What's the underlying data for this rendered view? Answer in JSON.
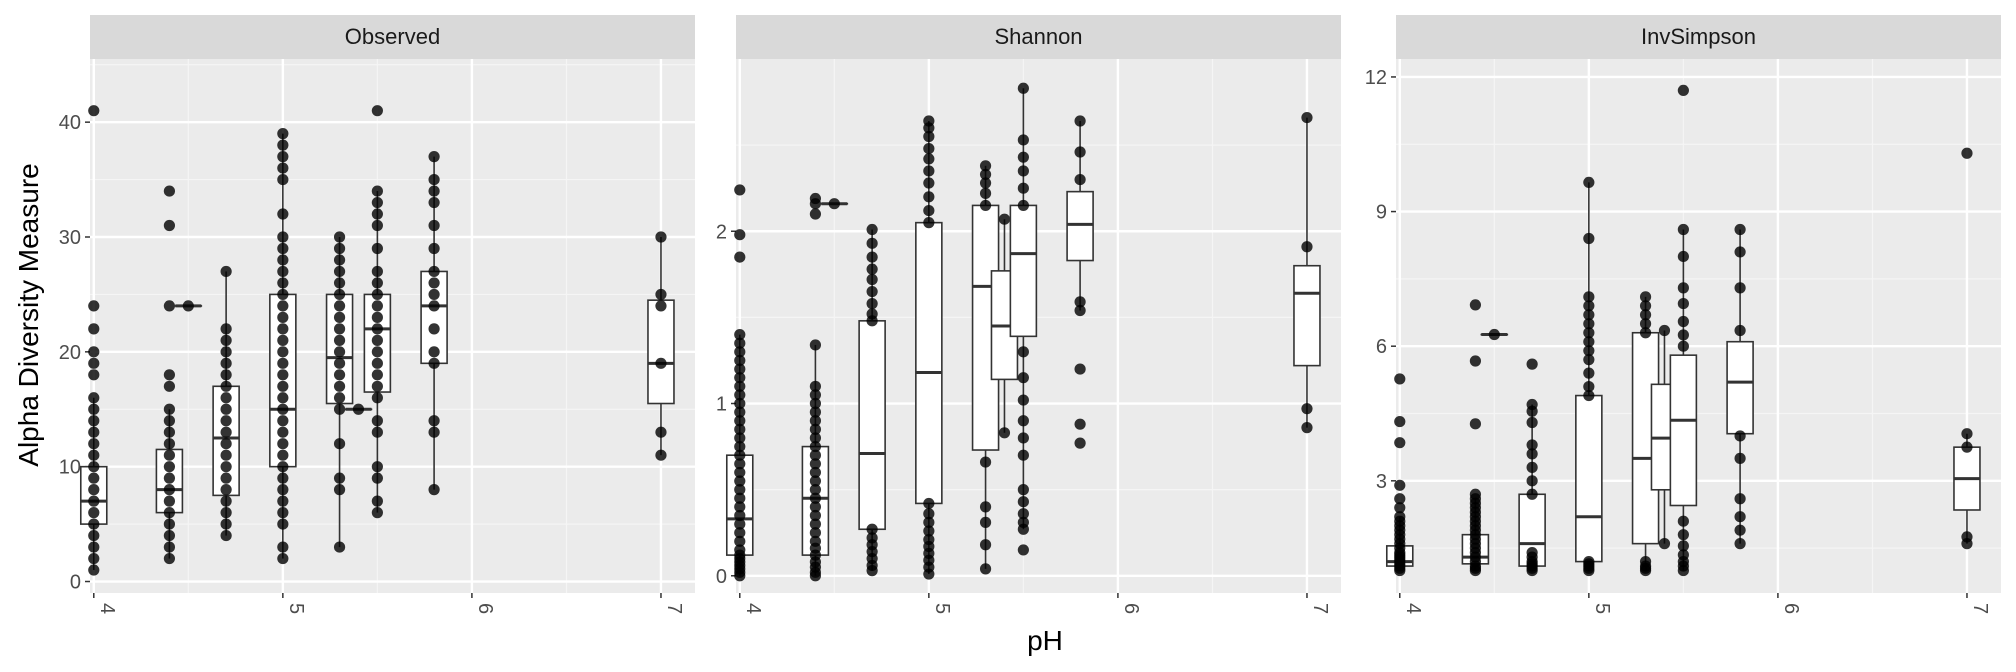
{
  "chart_data": {
    "type": "boxplot",
    "xlabel": "pH",
    "ylabel": "Alpha Diversity Measure",
    "x_ticks": [
      "4",
      "5",
      "6",
      "7"
    ],
    "xlim": [
      3.98,
      7.18
    ],
    "legend": "none",
    "grid": true,
    "panels": [
      {
        "name": "Observed",
        "ylim": [
          -1,
          45.5
        ],
        "y_ticks": [
          0,
          10,
          20,
          30,
          40
        ],
        "groups": [
          {
            "x": 4.0,
            "q1": 5,
            "median": 7,
            "q3": 10,
            "whisker_low": 1,
            "whisker_high": 16,
            "points": [
              1,
              2,
              3,
              4,
              5,
              6,
              7,
              8,
              9,
              10,
              11,
              12,
              13,
              14,
              15,
              16,
              18,
              19,
              20,
              22,
              24,
              41
            ]
          },
          {
            "x": 4.4,
            "q1": 6,
            "median": 8,
            "q3": 11.5,
            "whisker_low": 2,
            "whisker_high": 15,
            "points": [
              2,
              3,
              4,
              5,
              6,
              7,
              8,
              9,
              10,
              11,
              12,
              13,
              14,
              15,
              17,
              18,
              24,
              31,
              34
            ]
          },
          {
            "x": 4.5,
            "q1": 24,
            "median": 24,
            "q3": 24,
            "whisker_low": 24,
            "whisker_high": 24,
            "points": [
              24
            ]
          },
          {
            "x": 4.7,
            "q1": 7.5,
            "median": 12.5,
            "q3": 17,
            "whisker_low": 4,
            "whisker_high": 27,
            "points": [
              4,
              5,
              6,
              7,
              8,
              9,
              10,
              11,
              12,
              13,
              14,
              15,
              16,
              17,
              18,
              19,
              20,
              21,
              22,
              27
            ]
          },
          {
            "x": 5.0,
            "q1": 10,
            "median": 15,
            "q3": 25,
            "whisker_low": 2,
            "whisker_high": 39,
            "points": [
              2,
              3,
              5,
              6,
              7,
              8,
              9,
              10,
              11,
              12,
              13,
              14,
              15,
              16,
              17,
              18,
              19,
              20,
              21,
              22,
              23,
              24,
              25,
              26,
              27,
              28,
              29,
              30,
              32,
              35,
              36,
              37,
              38,
              39
            ]
          },
          {
            "x": 5.3,
            "q1": 15.5,
            "median": 19.5,
            "q3": 25,
            "whisker_low": 3,
            "whisker_high": 30,
            "points": [
              3,
              8,
              9,
              12,
              15,
              16,
              17,
              18,
              19,
              20,
              21,
              22,
              23,
              24,
              25,
              26,
              27,
              28,
              29,
              30
            ]
          },
          {
            "x": 5.4,
            "q1": 15,
            "median": 15,
            "q3": 15,
            "whisker_low": 15,
            "whisker_high": 15,
            "points": [
              15
            ]
          },
          {
            "x": 5.5,
            "q1": 16.5,
            "median": 22,
            "q3": 25,
            "whisker_low": 6,
            "whisker_high": 34,
            "points": [
              6,
              7,
              9,
              10,
              13,
              14,
              16,
              17,
              18,
              19,
              20,
              21,
              22,
              23,
              24,
              25,
              26,
              27,
              29,
              31,
              32,
              33,
              34,
              41
            ]
          },
          {
            "x": 5.8,
            "q1": 19,
            "median": 24,
            "q3": 27,
            "whisker_low": 8,
            "whisker_high": 37,
            "points": [
              8,
              13,
              14,
              19,
              20,
              22,
              24,
              25,
              26,
              27,
              29,
              31,
              33,
              34,
              35,
              37
            ]
          },
          {
            "x": 7.0,
            "q1": 15.5,
            "median": 19,
            "q3": 24.5,
            "whisker_low": 11,
            "whisker_high": 30,
            "points": [
              11,
              13,
              19,
              24,
              25,
              30
            ]
          }
        ]
      },
      {
        "name": "Shannon",
        "ylim": [
          -0.1,
          3.0
        ],
        "y_ticks": [
          0,
          1,
          2
        ],
        "groups": [
          {
            "x": 4.0,
            "q1": 0.12,
            "median": 0.33,
            "q3": 0.7,
            "whisker_low": 0.0,
            "whisker_high": 1.4,
            "points": [
              0.0,
              0.02,
              0.04,
              0.06,
              0.08,
              0.1,
              0.12,
              0.15,
              0.2,
              0.25,
              0.3,
              0.35,
              0.4,
              0.45,
              0.5,
              0.55,
              0.6,
              0.65,
              0.7,
              0.75,
              0.8,
              0.85,
              0.9,
              0.95,
              1.0,
              1.05,
              1.1,
              1.15,
              1.2,
              1.25,
              1.3,
              1.35,
              1.4,
              1.85,
              1.98,
              2.24
            ]
          },
          {
            "x": 4.4,
            "q1": 0.12,
            "median": 0.45,
            "q3": 0.75,
            "whisker_low": 0.0,
            "whisker_high": 1.34,
            "points": [
              0.0,
              0.02,
              0.05,
              0.08,
              0.12,
              0.16,
              0.2,
              0.25,
              0.3,
              0.35,
              0.4,
              0.45,
              0.5,
              0.55,
              0.6,
              0.65,
              0.7,
              0.75,
              0.8,
              0.85,
              0.9,
              0.95,
              1.0,
              1.05,
              1.1,
              1.34,
              2.1,
              2.16,
              2.19
            ]
          },
          {
            "x": 4.5,
            "q1": 2.16,
            "median": 2.16,
            "q3": 2.16,
            "whisker_low": 2.16,
            "whisker_high": 2.16,
            "points": [
              2.16
            ]
          },
          {
            "x": 4.7,
            "q1": 0.27,
            "median": 0.71,
            "q3": 1.48,
            "whisker_low": 0.03,
            "whisker_high": 2.01,
            "points": [
              0.03,
              0.06,
              0.1,
              0.14,
              0.18,
              0.22,
              0.27,
              1.48,
              1.52,
              1.58,
              1.65,
              1.72,
              1.78,
              1.85,
              1.93,
              2.01
            ]
          },
          {
            "x": 5.0,
            "q1": 0.42,
            "median": 1.18,
            "q3": 2.05,
            "whisker_low": 0.01,
            "whisker_high": 2.64,
            "points": [
              0.01,
              0.05,
              0.09,
              0.13,
              0.17,
              0.21,
              0.26,
              0.31,
              0.36,
              0.42,
              2.05,
              2.12,
              2.2,
              2.28,
              2.35,
              2.42,
              2.48,
              2.55,
              2.6,
              2.64
            ]
          },
          {
            "x": 5.3,
            "q1": 0.73,
            "median": 1.68,
            "q3": 2.15,
            "whisker_low": 0.04,
            "whisker_high": 2.38,
            "points": [
              0.04,
              0.18,
              0.31,
              0.4,
              0.66,
              2.15,
              2.22,
              2.28,
              2.33,
              2.38
            ]
          },
          {
            "x": 5.4,
            "q1": 1.14,
            "median": 1.45,
            "q3": 1.77,
            "whisker_low": 0.83,
            "whisker_high": 2.07,
            "points": [
              0.83,
              2.07
            ]
          },
          {
            "x": 5.5,
            "q1": 1.39,
            "median": 1.87,
            "q3": 2.15,
            "whisker_low": 0.27,
            "whisker_high": 2.83,
            "points": [
              0.15,
              0.27,
              0.31,
              0.36,
              0.43,
              0.5,
              0.7,
              0.8,
              0.9,
              1.02,
              1.15,
              1.3,
              2.15,
              2.25,
              2.35,
              2.43,
              2.53,
              2.83
            ]
          },
          {
            "x": 5.8,
            "q1": 1.83,
            "median": 2.04,
            "q3": 2.23,
            "whisker_low": 1.54,
            "whisker_high": 2.64,
            "points": [
              0.77,
              0.88,
              1.2,
              1.54,
              1.59,
              2.3,
              2.46,
              2.64
            ]
          },
          {
            "x": 7.0,
            "q1": 1.22,
            "median": 1.64,
            "q3": 1.8,
            "whisker_low": 0.86,
            "whisker_high": 2.66,
            "points": [
              0.86,
              0.97,
              1.91,
              2.66
            ]
          }
        ]
      },
      {
        "name": "InvSimpson",
        "ylim": [
          0.5,
          12.4
        ],
        "y_ticks": [
          3,
          6,
          9,
          12
        ],
        "groups": [
          {
            "x": 4.0,
            "q1": 1.1,
            "median": 1.2,
            "q3": 1.55,
            "whisker_low": 1.0,
            "whisker_high": 2.2,
            "points": [
              1.0,
              1.05,
              1.1,
              1.15,
              1.2,
              1.25,
              1.3,
              1.35,
              1.4,
              1.5,
              1.6,
              1.7,
              1.8,
              1.9,
              2.0,
              2.1,
              2.2,
              2.4,
              2.6,
              2.9,
              3.85,
              4.32,
              5.27
            ]
          },
          {
            "x": 4.4,
            "q1": 1.15,
            "median": 1.3,
            "q3": 1.8,
            "whisker_low": 1.0,
            "whisker_high": 2.6,
            "points": [
              1.0,
              1.05,
              1.1,
              1.2,
              1.3,
              1.4,
              1.5,
              1.6,
              1.7,
              1.8,
              1.9,
              2.0,
              2.1,
              2.2,
              2.3,
              2.4,
              2.5,
              2.6,
              2.7,
              4.27,
              5.67,
              6.92
            ]
          },
          {
            "x": 4.5,
            "q1": 6.26,
            "median": 6.26,
            "q3": 6.26,
            "whisker_low": 6.26,
            "whisker_high": 6.26,
            "points": [
              6.26
            ]
          },
          {
            "x": 4.7,
            "q1": 1.1,
            "median": 1.6,
            "q3": 2.7,
            "whisker_low": 1.0,
            "whisker_high": 4.7,
            "points": [
              1.0,
              1.05,
              1.1,
              1.15,
              1.2,
              1.3,
              1.4,
              2.7,
              3.0,
              3.3,
              3.6,
              3.8,
              4.3,
              4.55,
              4.7,
              5.6
            ]
          },
          {
            "x": 5.0,
            "q1": 1.2,
            "median": 2.2,
            "q3": 4.9,
            "whisker_low": 1.0,
            "whisker_high": 9.65,
            "points": [
              1.0,
              1.05,
              1.1,
              1.15,
              1.2,
              4.9,
              5.1,
              5.4,
              5.7,
              5.9,
              6.1,
              6.3,
              6.5,
              6.7,
              6.9,
              7.1,
              8.4,
              9.65
            ]
          },
          {
            "x": 5.3,
            "q1": 1.6,
            "median": 3.5,
            "q3": 6.3,
            "whisker_low": 1.0,
            "whisker_high": 7.1,
            "points": [
              1.0,
              1.05,
              1.1,
              1.2,
              6.3,
              6.5,
              6.7,
              6.9,
              7.1
            ]
          },
          {
            "x": 5.4,
            "q1": 2.8,
            "median": 3.95,
            "q3": 5.15,
            "whisker_low": 1.6,
            "whisker_high": 6.35,
            "points": [
              1.6,
              6.35
            ]
          },
          {
            "x": 5.5,
            "q1": 2.45,
            "median": 4.35,
            "q3": 5.8,
            "whisker_low": 1.0,
            "whisker_high": 8.6,
            "points": [
              1.0,
              1.1,
              1.2,
              1.35,
              1.55,
              1.8,
              2.1,
              6.0,
              6.25,
              6.55,
              6.95,
              7.3,
              8.0,
              8.6,
              11.7
            ]
          },
          {
            "x": 5.8,
            "q1": 4.05,
            "median": 5.2,
            "q3": 6.1,
            "whisker_low": 1.6,
            "whisker_high": 8.6,
            "points": [
              1.6,
              1.9,
              2.2,
              2.6,
              3.5,
              4.0,
              6.35,
              7.3,
              8.1,
              8.6
            ]
          },
          {
            "x": 7.0,
            "q1": 2.35,
            "median": 3.05,
            "q3": 3.75,
            "whisker_low": 1.6,
            "whisker_high": 4.05,
            "points": [
              1.6,
              1.75,
              3.75,
              4.05,
              10.3
            ]
          }
        ]
      }
    ]
  }
}
